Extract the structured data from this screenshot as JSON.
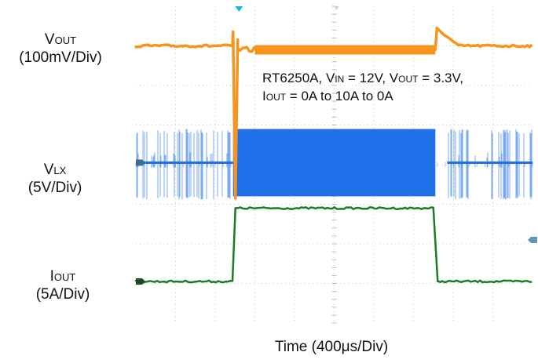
{
  "chart_data": {
    "type": "line",
    "xlabel": "Time (400μs/Div)",
    "time_per_div_us": 400,
    "grid": true,
    "divisions": {
      "x": 10,
      "y": 8
    },
    "annotation": {
      "line1": {
        "a": "RT6250A, V",
        "a_sub": "IN",
        "b": " = 12V, V",
        "b_sub": "OUT",
        "c": " = 3.3V,"
      },
      "line2": {
        "a": "I",
        "a_sub": "OUT",
        "b": " = 0A to 10A to 0A"
      }
    },
    "channels": [
      {
        "id": "vout",
        "name_main": "V",
        "name_sub": "OUT",
        "scale": "(100mV/Div)",
        "color": "#f7941d",
        "baseline_div": 7.0,
        "load_step_up_div": 3.0,
        "load_step_down_div": 7.6,
        "undershoot_div": 0.55,
        "overshoot_div": 0.4,
        "loaded_offset_div": -0.1
      },
      {
        "id": "vlx",
        "name_main": "V",
        "name_sub": "LX",
        "scale": "(5V/Div)",
        "color": "#1e6fe8",
        "baseline_div": 4.05,
        "switching_low_div": 3.2,
        "switching_high_div": 4.9
      },
      {
        "id": "iout",
        "name_main": "I",
        "name_sub": "OUT",
        "scale": "(5A/Div)",
        "color": "#1d7a2a",
        "baseline_div": 1.05,
        "loaded_div": 2.9,
        "load_current_A": [
          0,
          10,
          0
        ]
      }
    ]
  }
}
